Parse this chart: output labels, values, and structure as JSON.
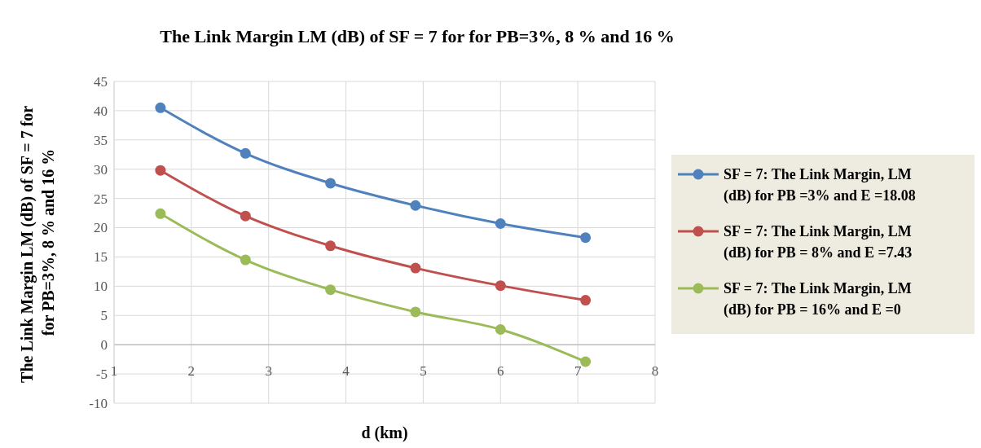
{
  "chart_data": {
    "type": "line",
    "title": "The Link Margin LM (dB) of SF = 7 for  for PB=3%, 8 % and 16 %",
    "xlabel": "d (km)",
    "ylabel": "The Link Margin LM (dB) of SF = 7 for  for PB=3%, 8 % and 16 %",
    "x": [
      1.6,
      2.7,
      3.8,
      4.9,
      6.0,
      7.1
    ],
    "series": [
      {
        "name": "SF = 7: The Link Margin, LM (dB) for PB =3% and E =18.08",
        "color": "#4f81bd",
        "values": [
          40.5,
          32.7,
          27.6,
          23.8,
          20.7,
          18.3
        ]
      },
      {
        "name": "SF = 7: The Link Margin, LM (dB) for PB = 8% and E =7.43",
        "color": "#c0504d",
        "values": [
          29.8,
          22.0,
          16.9,
          13.1,
          10.1,
          7.6
        ]
      },
      {
        "name": "SF = 7: The Link Margin, LM (dB) for PB = 16% and E =0",
        "color": "#9bbb59",
        "values": [
          22.4,
          14.5,
          9.4,
          5.6,
          2.6,
          -2.9
        ]
      }
    ],
    "xlim": [
      1,
      8
    ],
    "xticks": [
      1,
      2,
      3,
      4,
      5,
      6,
      7,
      8
    ],
    "ylim": [
      -10,
      45
    ],
    "yticks": [
      -10,
      -5,
      0,
      5,
      10,
      15,
      20,
      25,
      30,
      35,
      40,
      45
    ],
    "grid": true,
    "legend": "right",
    "marker": "circle",
    "line_style": "solid"
  }
}
